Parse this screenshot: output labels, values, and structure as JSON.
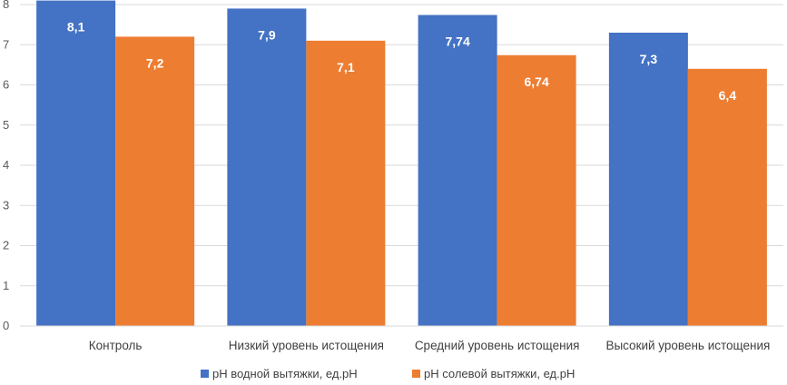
{
  "chart_data": {
    "type": "bar",
    "title": "",
    "xlabel": "",
    "ylabel": "",
    "ylim": [
      0,
      8
    ],
    "yticks": [
      "0",
      "1",
      "2",
      "3",
      "4",
      "5",
      "6",
      "7",
      "8"
    ],
    "grid": true,
    "legend_position": "bottom",
    "categories": [
      "Контроль",
      "Низкий уровень истощения",
      "Средний уровень истощения",
      "Высокий уровень истощения"
    ],
    "series": [
      {
        "name": "pH водной вытяжки, ед.pH",
        "color": "#4472C4",
        "values": [
          8.1,
          7.9,
          7.74,
          7.3
        ],
        "labels": [
          "8,1",
          "7,9",
          "7,74",
          "7,3"
        ]
      },
      {
        "name": "pH солевой вытяжки, ед.pH",
        "color": "#ED7D31",
        "values": [
          7.2,
          7.1,
          6.74,
          6.4
        ],
        "labels": [
          "7,2",
          "7,1",
          "6,74",
          "6,4"
        ]
      }
    ]
  }
}
